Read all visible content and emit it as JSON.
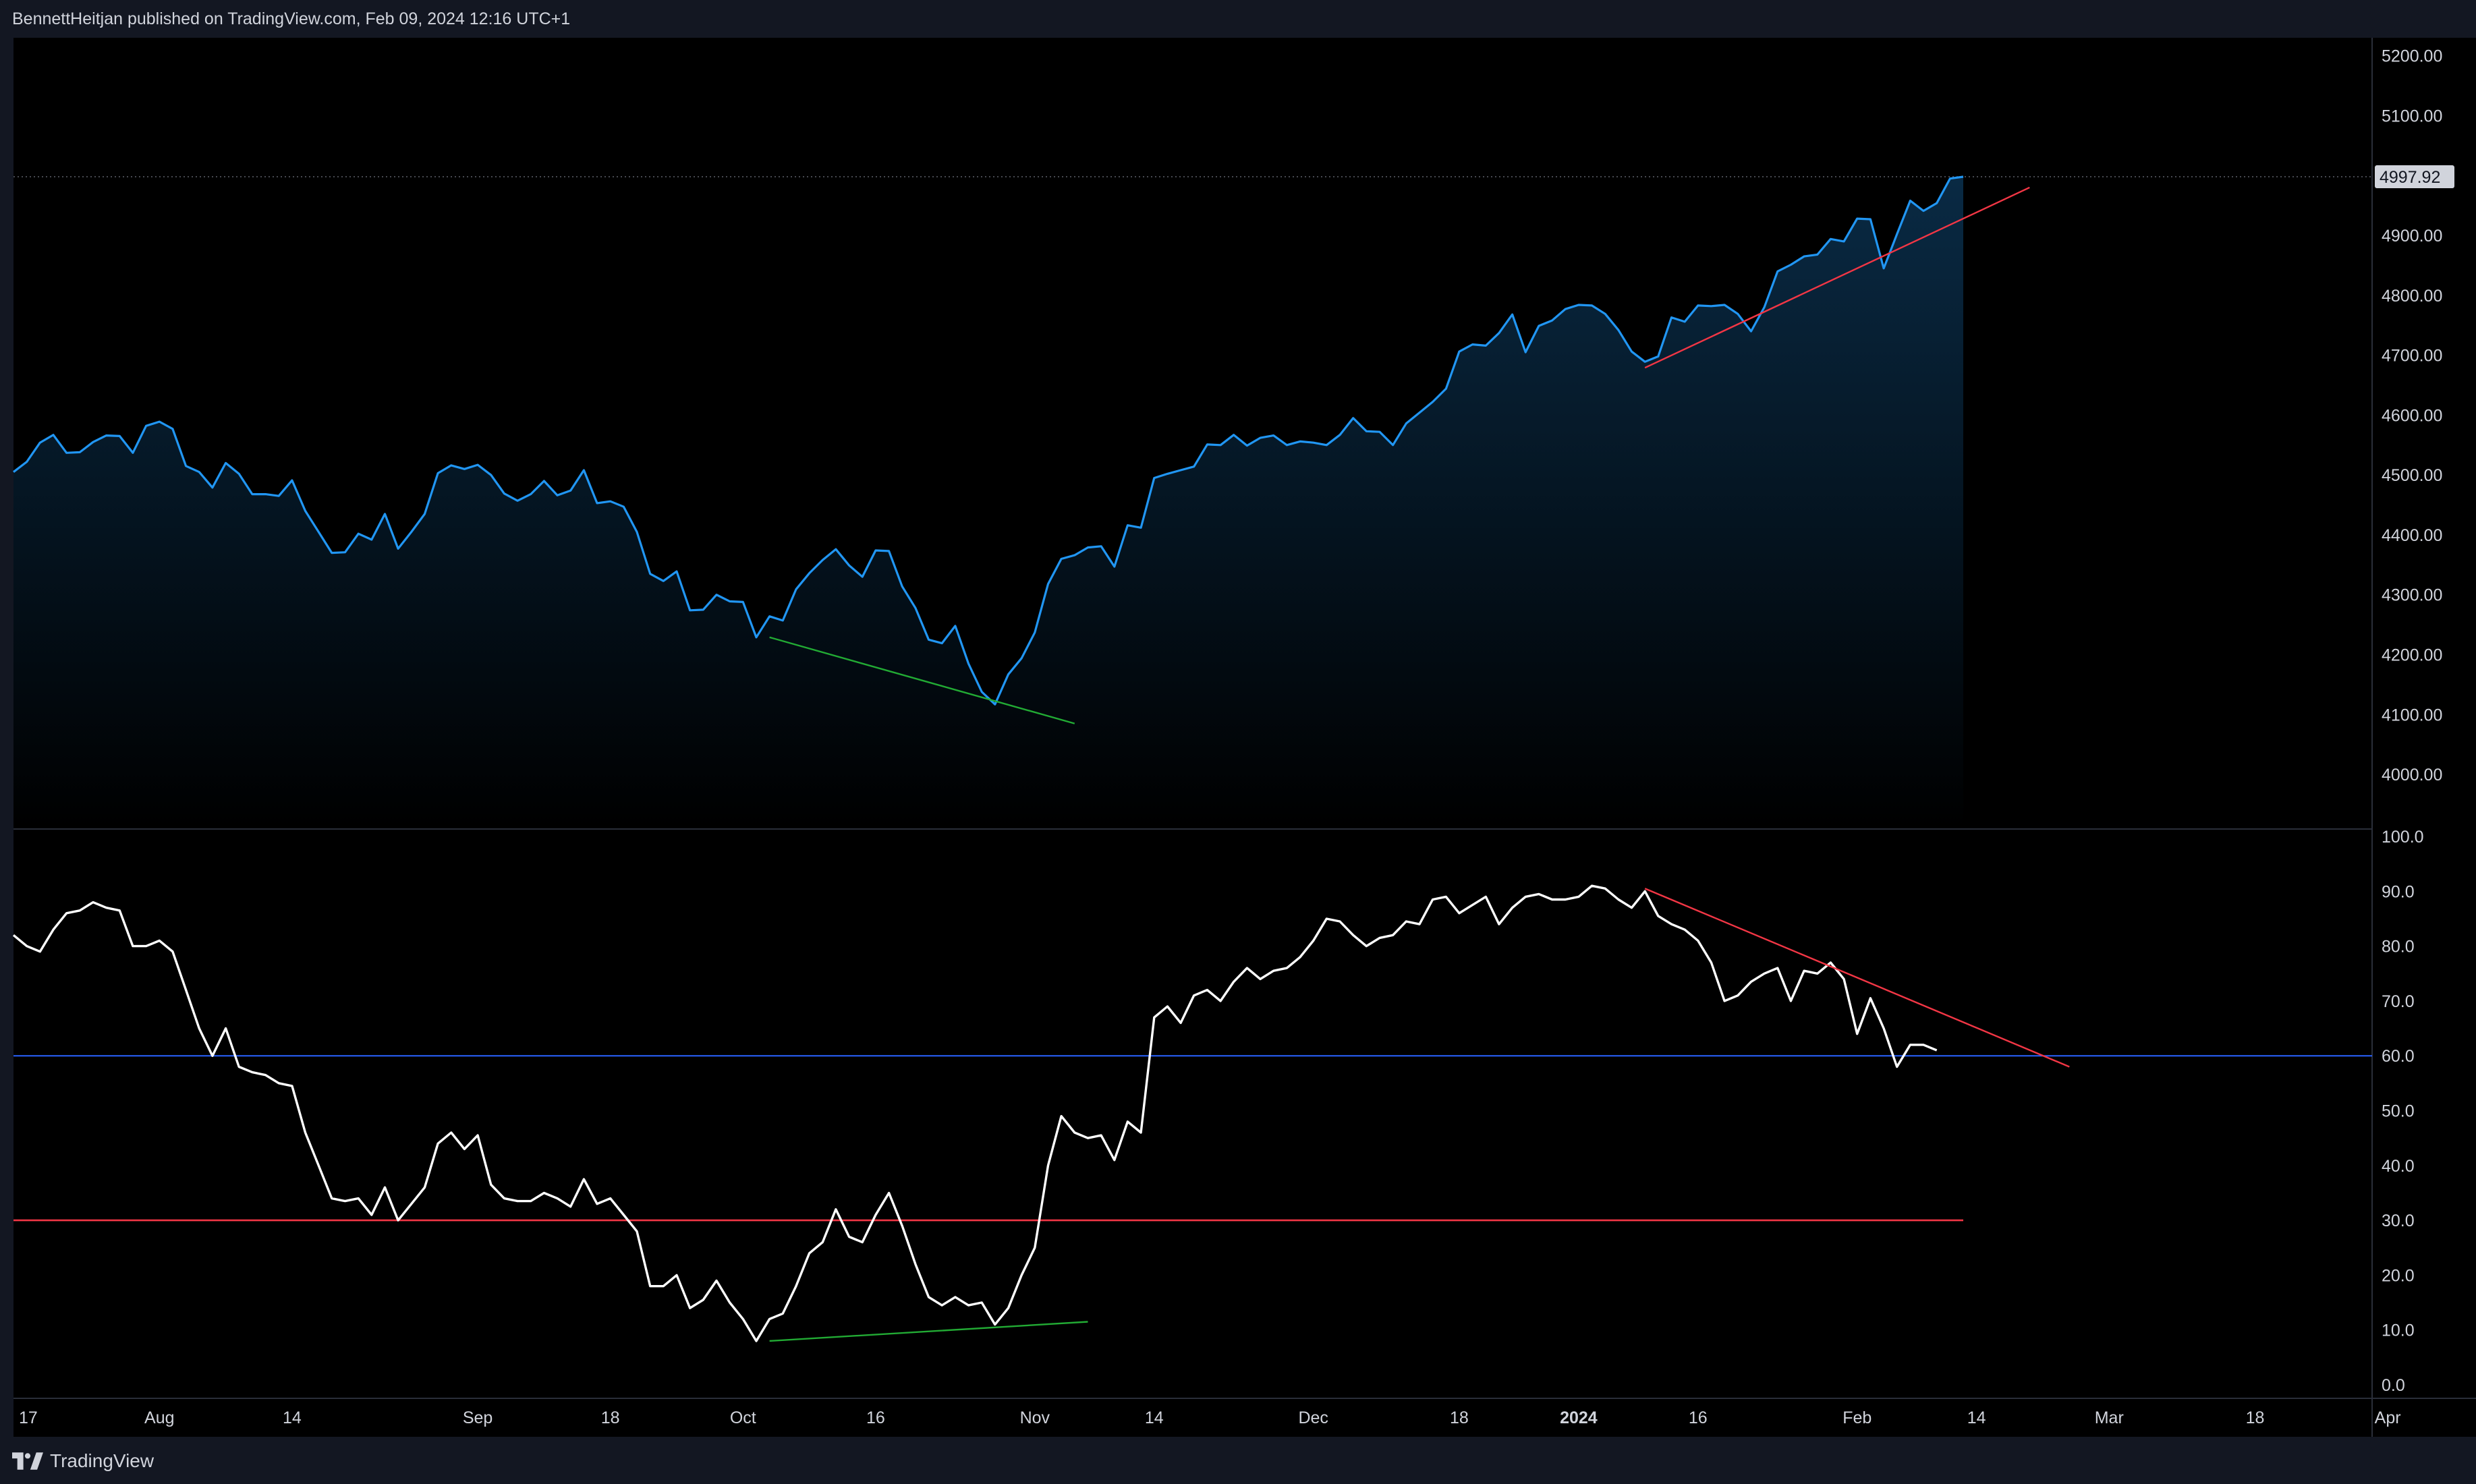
{
  "header": {
    "attribution": "BennettHeitjan published on TradingView.com, Feb 09, 2024 12:16 UTC+1"
  },
  "footer": {
    "brand": "TradingView"
  },
  "colors": {
    "background": "#000000",
    "frame": "#131722",
    "price_line": "#2196f3",
    "rsi_line": "#ffffff",
    "overbought_line": "#2962ff",
    "oversold_line": "#f23645",
    "bull_divergence": "#22ab34",
    "bear_divergence": "#f23645",
    "axis_text": "#d1d4dc"
  },
  "chart_data": [
    {
      "type": "area",
      "name": "price",
      "xlim": [
        0,
        177
      ],
      "ylim": [
        3910,
        5230
      ],
      "y_ticks": [
        "5200.00",
        "5100.00",
        "4900.00",
        "4800.00",
        "4700.00",
        "4600.00",
        "4500.00",
        "4400.00",
        "4300.00",
        "4200.00",
        "4100.00",
        "4000.00"
      ],
      "y_tick_values": [
        5200,
        5100,
        4900,
        4800,
        4700,
        4600,
        4500,
        4400,
        4300,
        4200,
        4100,
        4000
      ],
      "last_value": 4997.92,
      "last_value_label": "4997.92",
      "values": [
        4505,
        4522,
        4554,
        4567,
        4537,
        4538,
        4555,
        4566,
        4565,
        4537,
        4582,
        4589,
        4577,
        4515,
        4505,
        4479,
        4520,
        4502,
        4468,
        4468,
        4465,
        4491,
        4440,
        4405,
        4370,
        4371,
        4402,
        4392,
        4435,
        4377,
        4405,
        4435,
        4503,
        4516,
        4510,
        4517,
        4500,
        4469,
        4457,
        4468,
        4490,
        4466,
        4474,
        4508,
        4453,
        4456,
        4447,
        4405,
        4335,
        4323,
        4339,
        4274,
        4275,
        4300,
        4289,
        4288,
        4229,
        4264,
        4257,
        4309,
        4336,
        4358,
        4376,
        4349,
        4330,
        4374,
        4373,
        4314,
        4278,
        4225,
        4219,
        4248,
        4185,
        4138,
        4117,
        4167,
        4194,
        4237,
        4318,
        4360,
        4366,
        4379,
        4381,
        4347,
        4416,
        4412,
        4495,
        4502,
        4508,
        4514,
        4551,
        4550,
        4567,
        4549,
        4562,
        4566,
        4550,
        4556,
        4554,
        4550,
        4567,
        4595,
        4573,
        4572,
        4550,
        4586,
        4604,
        4622,
        4644,
        4706,
        4718,
        4716,
        4737,
        4768,
        4705,
        4749,
        4758,
        4777,
        4784,
        4783,
        4769,
        4742,
        4706,
        4689,
        4698,
        4763,
        4756,
        4783,
        4782,
        4784,
        4769,
        4740,
        4780,
        4840,
        4851,
        4865,
        4868,
        4894,
        4890,
        4928,
        4927,
        4845,
        4902,
        4958,
        4941,
        4954,
        4995,
        4998
      ],
      "series_end_index": 147,
      "trendlines": [
        {
          "name": "bullish-divergence-price",
          "color": "#22ab34",
          "start": [
            57,
            4229
          ],
          "end": [
            80,
            4085
          ]
        },
        {
          "name": "bearish-divergence-price",
          "color": "#f23645",
          "start": [
            123,
            4679
          ],
          "end": [
            152,
            4980
          ]
        }
      ]
    },
    {
      "type": "line",
      "name": "rsi",
      "ylim": [
        0,
        100
      ],
      "y_ticks": [
        "100.0",
        "90.0",
        "80.0",
        "70.0",
        "60.0",
        "50.0",
        "40.0",
        "30.0",
        "20.0",
        "10.0",
        "0.0"
      ],
      "y_tick_values": [
        100,
        90,
        80,
        70,
        60,
        50,
        40,
        30,
        20,
        10,
        0
      ],
      "hlines": [
        {
          "name": "overbought-level",
          "value": 60,
          "color": "#2962ff"
        },
        {
          "name": "oversold-level",
          "value": 30,
          "color": "#f23645"
        }
      ],
      "values": [
        82,
        80,
        79,
        83,
        86,
        86.5,
        88,
        87,
        86.5,
        80,
        80,
        81,
        79,
        72,
        65,
        60,
        65,
        58,
        57,
        56.5,
        55,
        54.5,
        46,
        40,
        34,
        33.5,
        34,
        31,
        36,
        30,
        33,
        36,
        44,
        46,
        43,
        45.5,
        36.5,
        34,
        33.5,
        33.5,
        35,
        34,
        32.5,
        37.5,
        33,
        34,
        31,
        28,
        18,
        18,
        20,
        14,
        15.5,
        19,
        15,
        12,
        8,
        12,
        13,
        18,
        24,
        26,
        32,
        27,
        26,
        31,
        35,
        29,
        22,
        16,
        14.5,
        16,
        14.5,
        15,
        11,
        14,
        20,
        25,
        40,
        49,
        46,
        45,
        45.5,
        41,
        48,
        46,
        67,
        69,
        66,
        71,
        72,
        70,
        73.5,
        76,
        74,
        75.5,
        76,
        78,
        81,
        85,
        84.5,
        82,
        80,
        81.5,
        82,
        84.5,
        84,
        88.5,
        89,
        86,
        87.5,
        89,
        84,
        87,
        89,
        89.5,
        88.5,
        88.5,
        89,
        91,
        90.5,
        88.5,
        87,
        90,
        85.5,
        84,
        83,
        81,
        77,
        70,
        71,
        73.5,
        75,
        76,
        70,
        75.5,
        75,
        77,
        74,
        64,
        70.5,
        65,
        58,
        62,
        62,
        61
      ],
      "series_end_index": 147,
      "trendlines": [
        {
          "name": "bullish-divergence-rsi",
          "color": "#22ab34",
          "start": [
            57,
            8
          ],
          "end": [
            81,
            11.5
          ]
        },
        {
          "name": "bearish-divergence-rsi",
          "color": "#f23645",
          "start": [
            123,
            90.5
          ],
          "end": [
            155,
            58
          ]
        }
      ]
    }
  ],
  "x_axis": {
    "ticks": [
      {
        "index": -1,
        "label": "17",
        "bold": false
      },
      {
        "index": 11,
        "label": "Aug",
        "bold": false
      },
      {
        "index": 21,
        "label": "14",
        "bold": false
      },
      {
        "index": 35,
        "label": "Sep",
        "bold": false
      },
      {
        "index": 45,
        "label": "18",
        "bold": false
      },
      {
        "index": 55,
        "label": "Oct",
        "bold": false
      },
      {
        "index": 65,
        "label": "16",
        "bold": false
      },
      {
        "index": 77,
        "label": "Nov",
        "bold": false
      },
      {
        "index": 86,
        "label": "14",
        "bold": false
      },
      {
        "index": 98,
        "label": "Dec",
        "bold": false
      },
      {
        "index": 109,
        "label": "18",
        "bold": false
      },
      {
        "index": 118,
        "label": "2024",
        "bold": true
      },
      {
        "index": 127,
        "label": "16",
        "bold": false
      },
      {
        "index": 139,
        "label": "Feb",
        "bold": false
      },
      {
        "index": 148,
        "label": "14",
        "bold": false
      },
      {
        "index": 158,
        "label": "Mar",
        "bold": false
      },
      {
        "index": 169,
        "label": "18",
        "bold": false
      },
      {
        "index": 179,
        "label": "Apr",
        "bold": false
      }
    ]
  }
}
